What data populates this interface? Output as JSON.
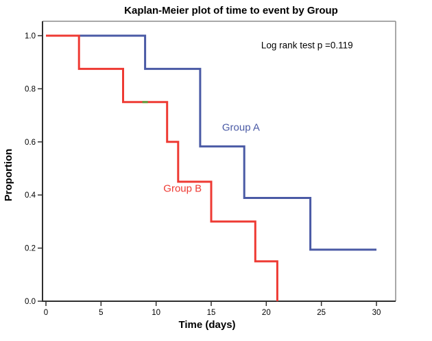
{
  "window": {
    "background": "#ffffff"
  },
  "chart_data": {
    "type": "line",
    "subtype": "kaplan-meier-step",
    "title": "Kaplan-Meier plot of time to event by Group",
    "xlabel": "Time (days)",
    "ylabel": "Proportion",
    "annotation": "Log rank test p =0.119",
    "p_value": 0.119,
    "xlim": [
      0,
      31.7
    ],
    "ylim": [
      0,
      1.05
    ],
    "xticks": [
      0,
      5,
      10,
      15,
      20,
      25,
      30
    ],
    "yticks": [
      "0.0",
      "0.2",
      "0.4",
      "0.6",
      "0.8",
      "1.0"
    ],
    "grid": false,
    "legend": "inline-labels",
    "colors": {
      "group_a": "#4a5aa5",
      "group_b": "#ee3a33",
      "censor_mark": "#5f9e3c",
      "axis": "#2e2e2e",
      "frame": "#8c8c8c",
      "text": "#000000"
    },
    "series": [
      {
        "name": "Group A",
        "color": "#4a5aa5",
        "steps": [
          [
            0,
            1.0
          ],
          [
            9,
            0.875
          ],
          [
            14,
            0.583
          ],
          [
            18,
            0.389
          ],
          [
            24,
            0.194
          ]
        ],
        "end_time": 30,
        "label": {
          "text": "Group A",
          "t": 17.7,
          "p": 0.655
        }
      },
      {
        "name": "Group B",
        "color": "#ee3a33",
        "steps": [
          [
            0,
            1.0
          ],
          [
            3,
            0.875
          ],
          [
            7,
            0.75
          ],
          [
            11,
            0.6
          ],
          [
            12,
            0.45
          ],
          [
            15,
            0.3
          ],
          [
            19,
            0.15
          ],
          [
            21,
            0.0
          ]
        ],
        "end_time": 21,
        "label": {
          "text": "Group B",
          "t": 12.4,
          "p": 0.425
        }
      }
    ],
    "censor_marks": [
      {
        "series": "Group B",
        "t": 9,
        "p": 0.75,
        "color": "#5f9e3c"
      }
    ],
    "annotation_pos": {
      "t": 23.7,
      "p": 0.962
    }
  }
}
